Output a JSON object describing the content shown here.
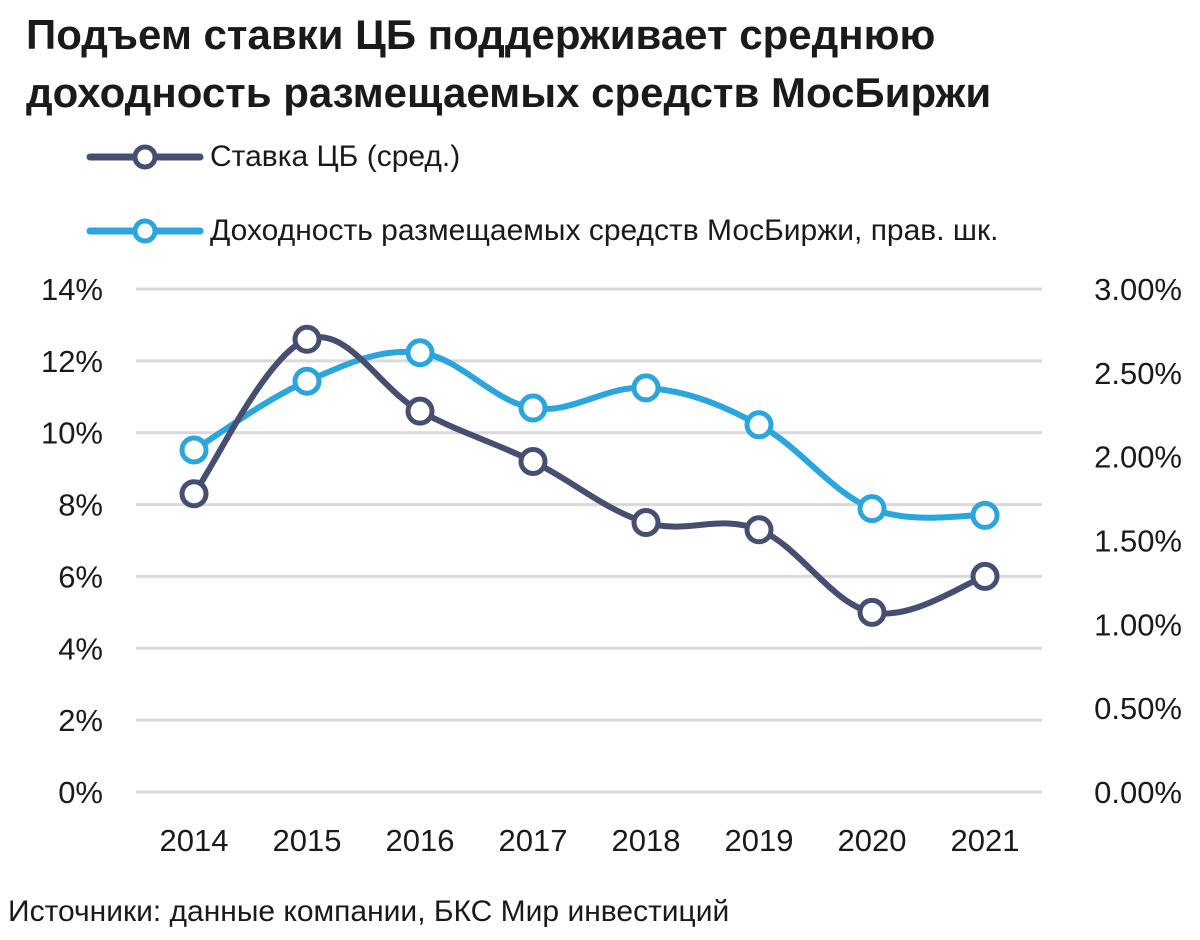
{
  "title_lines": [
    "Подъем ставки ЦБ поддерживает среднюю",
    "доходность размещаемых средств МосБиржи"
  ],
  "source": "Источники: данные компании, БКС Мир инвестиций",
  "chart_data": {
    "type": "line",
    "title": "Подъем ставки ЦБ поддерживает среднюю доходность размещаемых средств МосБиржи",
    "x": [
      "2014",
      "2015",
      "2016",
      "2017",
      "2018",
      "2019",
      "2020",
      "2021"
    ],
    "series": [
      {
        "name": "Ставка ЦБ (сред.)",
        "axis": "left",
        "color": "#474f70",
        "values": [
          8.3,
          12.6,
          10.6,
          9.2,
          7.5,
          7.3,
          5.0,
          6.0
        ]
      },
      {
        "name": "Доходность размещаемых средств МосБиржи, прав. шк.",
        "axis": "right",
        "color": "#2aa6dd",
        "values": [
          2.04,
          2.45,
          2.62,
          2.29,
          2.41,
          2.19,
          1.69,
          1.65
        ]
      }
    ],
    "y_left": {
      "ylim": [
        0,
        14
      ],
      "ticks": [
        "0%",
        "2%",
        "4%",
        "6%",
        "8%",
        "10%",
        "12%",
        "14%"
      ]
    },
    "y_right": {
      "ylim": [
        0,
        3
      ],
      "ticks": [
        "0.00%",
        "0.50%",
        "1.00%",
        "1.50%",
        "2.00%",
        "2.50%",
        "3.00%"
      ]
    },
    "grid": true,
    "legend_position": "top-left"
  }
}
